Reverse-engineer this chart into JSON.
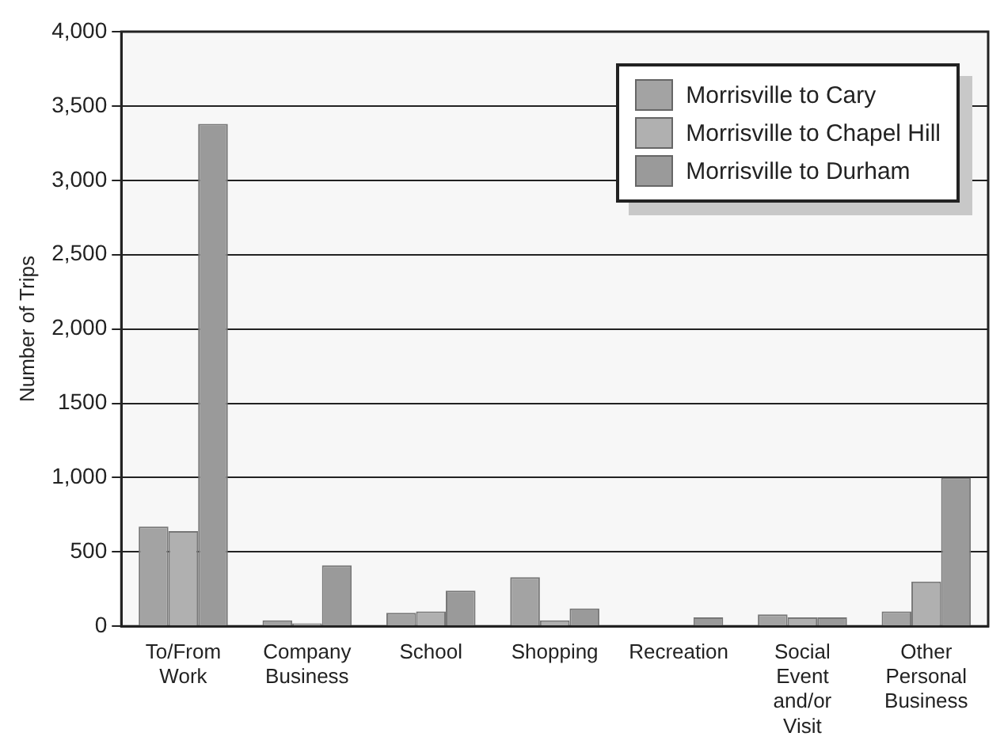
{
  "chart_data": {
    "type": "bar",
    "ylabel": "Number of Trips",
    "categories": [
      "To/From Work",
      "Company Business",
      "School",
      "Shopping",
      "Recreation",
      "Social Event and/or Visit",
      "Other Personal Business"
    ],
    "series": [
      {
        "name": "Morrisville to Cary",
        "color": "#a3a3a3",
        "values": [
          670,
          40,
          90,
          330,
          0,
          80,
          100
        ]
      },
      {
        "name": "Morrisville to Chapel Hill",
        "color": "#b0b0b0",
        "values": [
          640,
          20,
          100,
          40,
          0,
          60,
          300
        ]
      },
      {
        "name": "Morrisville to Durham",
        "color": "#9a9a9a",
        "values": [
          3380,
          410,
          240,
          120,
          60,
          60,
          1000
        ]
      }
    ],
    "ylim": [
      0,
      4000
    ],
    "yticks": [
      0,
      500,
      {
        "value": 1000,
        "label": "1,000"
      },
      {
        "value": 1500,
        "label": "1500"
      },
      {
        "value": 2000,
        "label": "2,000"
      },
      {
        "value": 2500,
        "label": "2,500"
      },
      {
        "value": 3000,
        "label": "3,000"
      },
      {
        "value": 3500,
        "label": "3,500"
      },
      {
        "value": 4000,
        "label": "4,000"
      }
    ],
    "grid": "y",
    "legend": "top right"
  }
}
